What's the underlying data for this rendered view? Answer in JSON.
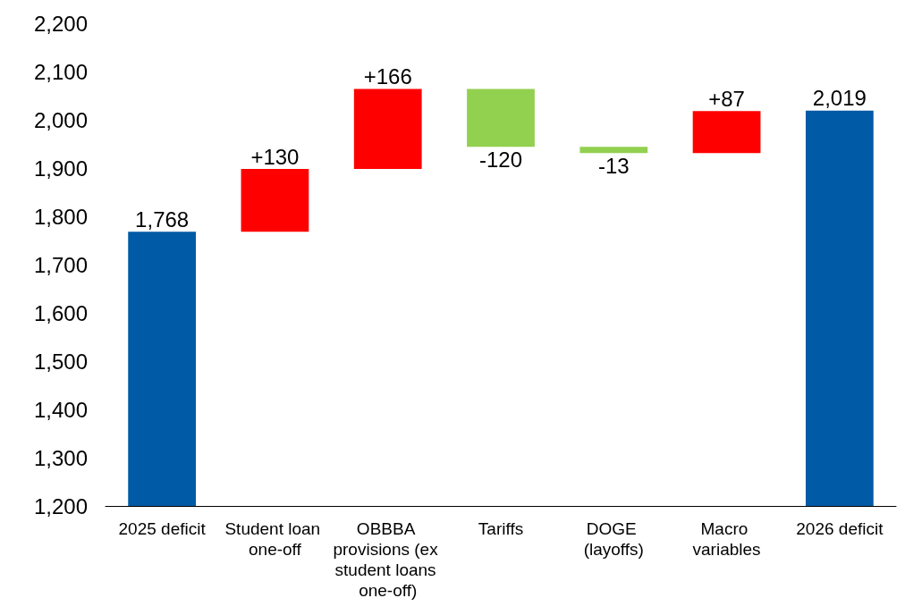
{
  "chart_data": {
    "type": "bar",
    "categories": [
      "2025 deficit",
      "Student loan one-off",
      "OBBBA provisions (ex student loans one-off)",
      "Tariffs",
      "DOGE (layoffs)",
      "Macro variables",
      "2026 deficit"
    ],
    "values": [
      1768,
      130,
      166,
      -120,
      -13,
      87,
      2019
    ],
    "base": [
      null,
      1768,
      1898,
      2064,
      1944,
      1931,
      null
    ],
    "colors": [
      "#005aa5",
      "#ff0000",
      "#ff0000",
      "#92d050",
      "#92d050",
      "#ff0000",
      "#005aa5"
    ],
    "value_labels": [
      "1,768",
      "+130",
      "+166",
      "-120",
      "-13",
      "+87",
      "2,019"
    ],
    "ylim": [
      1200,
      2200
    ],
    "yticks": [
      {
        "value": 1200,
        "label": "1,200"
      },
      {
        "value": 1300,
        "label": "1,300"
      },
      {
        "value": 1400,
        "label": "1,400"
      },
      {
        "value": 1500,
        "label": "1,500"
      },
      {
        "value": 1600,
        "label": "1,600"
      },
      {
        "value": 1700,
        "label": "1,700"
      },
      {
        "value": 1800,
        "label": "1,800"
      },
      {
        "value": 1900,
        "label": "1,900"
      },
      {
        "value": 2000,
        "label": "2,000"
      },
      {
        "value": 2100,
        "label": "2,100"
      },
      {
        "value": 2200,
        "label": "2,200"
      }
    ],
    "grid": false
  }
}
